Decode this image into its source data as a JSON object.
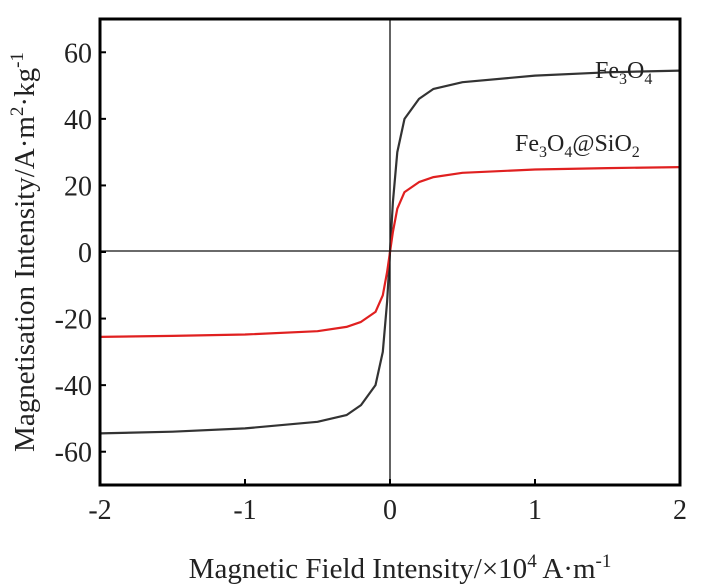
{
  "chart_data": {
    "type": "line",
    "title": "",
    "xlabel": "Magnetic Field Intensity/×10⁴ A·m⁻¹",
    "xlabel_parts": {
      "main": "Magnetic Field Intensity/×10",
      "sup1": "4",
      "unit": " A·m",
      "sup2": "-1"
    },
    "ylabel": "Magnetisation Intensity/A·m²·kg⁻¹",
    "ylabel_parts": {
      "main": "Magnetisation Intensity/A·m",
      "sup1": "2",
      "unit": "·kg",
      "sup2": "-1"
    },
    "xlim": [
      -2,
      2
    ],
    "ylim": [
      -70,
      70
    ],
    "xticks": [
      -2,
      -1,
      0,
      1,
      2
    ],
    "yticks": [
      -60,
      -40,
      -20,
      0,
      20,
      40,
      60
    ],
    "grid": false,
    "x": [
      -2,
      -1.5,
      -1,
      -0.5,
      -0.3,
      -0.2,
      -0.1,
      -0.05,
      -0.02,
      0,
      0.02,
      0.05,
      0.1,
      0.2,
      0.3,
      0.5,
      1,
      1.5,
      2
    ],
    "series": [
      {
        "name": "Fe3O4",
        "label_parts": [
          "Fe",
          "3",
          "O",
          "4",
          ""
        ],
        "color": "#333333",
        "values": [
          -54.5,
          -54,
          -53,
          -51,
          -49,
          -46,
          -40,
          -30,
          -15,
          0,
          15,
          30,
          40,
          46,
          49,
          51,
          53,
          54,
          54.5
        ]
      },
      {
        "name": "Fe3O4@SiO2",
        "label_parts": [
          "Fe",
          "3",
          "O",
          "4",
          "@SiO",
          "2"
        ],
        "color": "#e02020",
        "values": [
          -25.5,
          -25.2,
          -24.8,
          -23.8,
          -22.5,
          -21,
          -18,
          -13,
          -6,
          0,
          6,
          13,
          18,
          21,
          22.5,
          23.8,
          24.8,
          25.2,
          25.5
        ]
      }
    ]
  }
}
